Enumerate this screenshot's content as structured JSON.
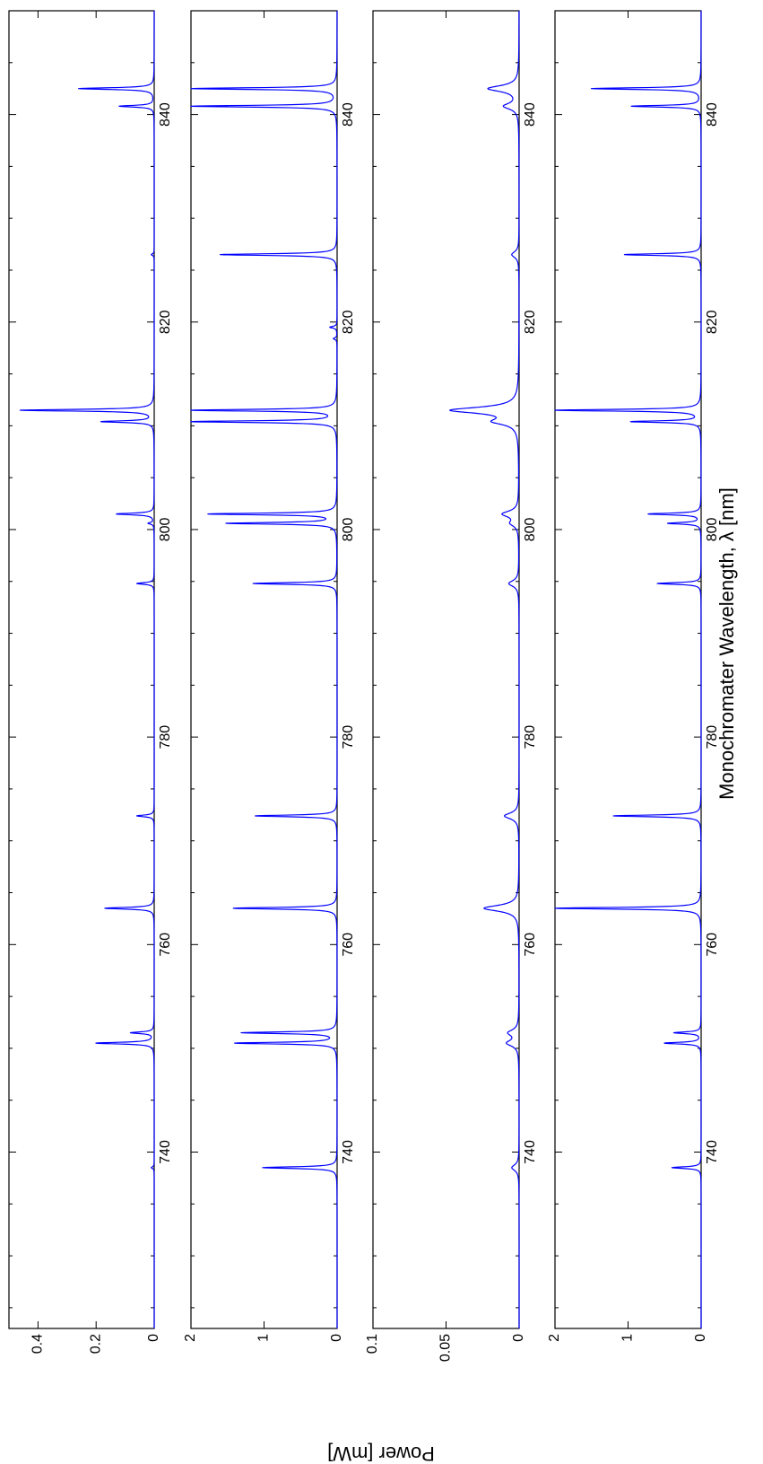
{
  "figure": {
    "xlabel": "Monochromater Wavelength, λ [nm]",
    "ylabel": "Power [mW]",
    "line_color": "#0000ff",
    "axes_color": "#000000"
  },
  "chart_data": [
    {
      "type": "line",
      "xlim": [
        723,
        850
      ],
      "ylim": [
        0,
        0.5
      ],
      "x_ticks": [
        740,
        760,
        780,
        800,
        820,
        840
      ],
      "y_ticks": [
        0,
        0.2,
        0.4
      ],
      "y_tick_labels": [
        "0",
        "0.2",
        "0.4"
      ],
      "peaks": [
        {
          "x": 738.5,
          "y": 0.01,
          "w": 0.1
        },
        {
          "x": 750.5,
          "y": 0.2,
          "w": 0.1
        },
        {
          "x": 751.5,
          "y": 0.08,
          "w": 0.1
        },
        {
          "x": 763.5,
          "y": 0.17,
          "w": 0.1
        },
        {
          "x": 772.4,
          "y": 0.06,
          "w": 0.1
        },
        {
          "x": 794.8,
          "y": 0.06,
          "w": 0.1
        },
        {
          "x": 800.6,
          "y": 0.02,
          "w": 0.1
        },
        {
          "x": 801.5,
          "y": 0.13,
          "w": 0.1
        },
        {
          "x": 810.4,
          "y": 0.18,
          "w": 0.1
        },
        {
          "x": 811.5,
          "y": 0.46,
          "w": 0.1
        },
        {
          "x": 826.5,
          "y": 0.01,
          "w": 0.1
        },
        {
          "x": 840.8,
          "y": 0.12,
          "w": 0.1
        },
        {
          "x": 842.5,
          "y": 0.26,
          "w": 0.1
        }
      ]
    },
    {
      "type": "line",
      "xlim": [
        723,
        850
      ],
      "ylim": [
        0,
        2
      ],
      "x_ticks": [
        740,
        760,
        780,
        800,
        820,
        840
      ],
      "y_ticks": [
        0,
        1,
        2
      ],
      "y_tick_labels": [
        "0",
        "1",
        "2"
      ],
      "peaks": [
        {
          "x": 738.5,
          "y": 1.02,
          "w": 0.1
        },
        {
          "x": 750.5,
          "y": 1.39,
          "w": 0.1
        },
        {
          "x": 751.5,
          "y": 1.3,
          "w": 0.1
        },
        {
          "x": 763.5,
          "y": 1.42,
          "w": 0.1
        },
        {
          "x": 772.4,
          "y": 1.12,
          "w": 0.1
        },
        {
          "x": 794.8,
          "y": 1.15,
          "w": 0.1
        },
        {
          "x": 800.6,
          "y": 1.5,
          "w": 0.1
        },
        {
          "x": 801.5,
          "y": 1.75,
          "w": 0.1
        },
        {
          "x": 810.4,
          "y": 2.0,
          "w": 0.1
        },
        {
          "x": 811.5,
          "y": 2.0,
          "w": 0.1
        },
        {
          "x": 818.4,
          "y": 0.05,
          "w": 0.1
        },
        {
          "x": 819.5,
          "y": 0.1,
          "w": 0.1
        },
        {
          "x": 826.5,
          "y": 1.6,
          "w": 0.1
        },
        {
          "x": 840.8,
          "y": 2.0,
          "w": 0.1
        },
        {
          "x": 842.5,
          "y": 2.0,
          "w": 0.1
        }
      ]
    },
    {
      "type": "line",
      "xlim": [
        723,
        850
      ],
      "ylim": [
        0,
        0.1
      ],
      "x_ticks": [
        740,
        760,
        780,
        800,
        820,
        840
      ],
      "y_ticks": [
        0,
        0.05,
        0.1
      ],
      "y_tick_labels": [
        "0",
        "0.05",
        "0.1"
      ],
      "peaks": [
        {
          "x": 738.5,
          "y": 0.005,
          "w": 0.35
        },
        {
          "x": 750.5,
          "y": 0.008,
          "w": 0.35
        },
        {
          "x": 751.5,
          "y": 0.007,
          "w": 0.35
        },
        {
          "x": 763.5,
          "y": 0.024,
          "w": 0.35
        },
        {
          "x": 772.4,
          "y": 0.01,
          "w": 0.35
        },
        {
          "x": 794.8,
          "y": 0.007,
          "w": 0.35
        },
        {
          "x": 800.6,
          "y": 0.005,
          "w": 0.35
        },
        {
          "x": 801.5,
          "y": 0.011,
          "w": 0.35
        },
        {
          "x": 810.4,
          "y": 0.015,
          "w": 0.35
        },
        {
          "x": 811.5,
          "y": 0.046,
          "w": 0.35
        },
        {
          "x": 826.5,
          "y": 0.005,
          "w": 0.35
        },
        {
          "x": 840.8,
          "y": 0.01,
          "w": 0.35
        },
        {
          "x": 842.5,
          "y": 0.021,
          "w": 0.35
        }
      ]
    },
    {
      "type": "line",
      "xlim": [
        723,
        850
      ],
      "ylim": [
        0,
        2
      ],
      "x_ticks": [
        740,
        760,
        780,
        800,
        820,
        840
      ],
      "y_ticks": [
        0,
        1,
        2
      ],
      "y_tick_labels": [
        "0",
        "1",
        "2"
      ],
      "peaks": [
        {
          "x": 738.5,
          "y": 0.4,
          "w": 0.1
        },
        {
          "x": 750.5,
          "y": 0.5,
          "w": 0.1
        },
        {
          "x": 751.5,
          "y": 0.37,
          "w": 0.1
        },
        {
          "x": 763.5,
          "y": 2.0,
          "w": 0.1
        },
        {
          "x": 772.4,
          "y": 1.2,
          "w": 0.1
        },
        {
          "x": 794.8,
          "y": 0.6,
          "w": 0.1
        },
        {
          "x": 800.6,
          "y": 0.45,
          "w": 0.1
        },
        {
          "x": 801.5,
          "y": 0.72,
          "w": 0.1
        },
        {
          "x": 810.4,
          "y": 0.95,
          "w": 0.1
        },
        {
          "x": 811.5,
          "y": 2.0,
          "w": 0.1
        },
        {
          "x": 826.5,
          "y": 1.05,
          "w": 0.1
        },
        {
          "x": 840.8,
          "y": 0.95,
          "w": 0.1
        },
        {
          "x": 842.5,
          "y": 1.5,
          "w": 0.1
        }
      ]
    }
  ]
}
